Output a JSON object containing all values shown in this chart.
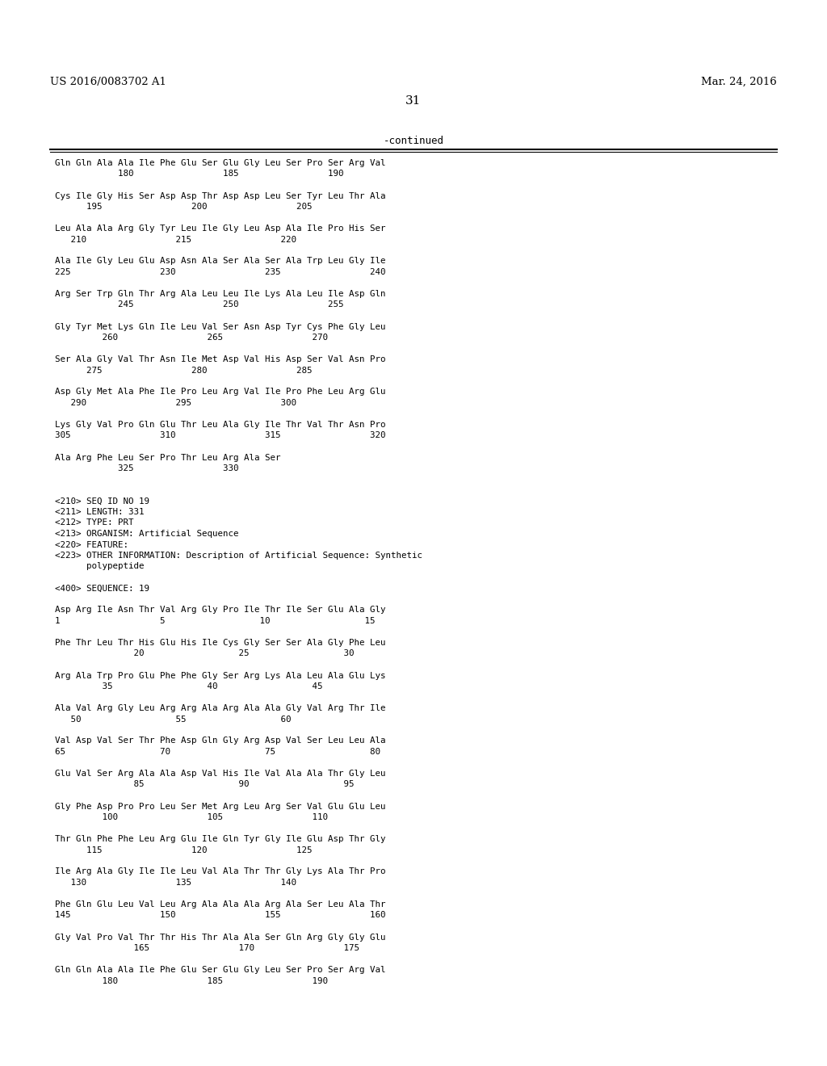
{
  "header_left": "US 2016/0083702 A1",
  "header_right": "Mar. 24, 2016",
  "page_number": "31",
  "continued_label": "-continued",
  "background_color": "#ffffff",
  "text_color": "#000000",
  "font_size": 8.5,
  "mono_font": "DejaVu Sans Mono",
  "serif_font": "DejaVu Serif",
  "lines": [
    "Gln Gln Ala Ala Ile Phe Glu Ser Glu Gly Leu Ser Pro Ser Arg Val",
    "            180                 185                 190",
    "",
    "Cys Ile Gly His Ser Asp Asp Thr Asp Asp Leu Ser Tyr Leu Thr Ala",
    "      195                 200                 205",
    "",
    "Leu Ala Ala Arg Gly Tyr Leu Ile Gly Leu Asp Ala Ile Pro His Ser",
    "   210                 215                 220",
    "",
    "Ala Ile Gly Leu Glu Asp Asn Ala Ser Ala Ser Ala Trp Leu Gly Ile",
    "225                 230                 235                 240",
    "",
    "Arg Ser Trp Gln Thr Arg Ala Leu Leu Ile Lys Ala Leu Ile Asp Gln",
    "            245                 250                 255",
    "",
    "Gly Tyr Met Lys Gln Ile Leu Val Ser Asn Asp Tyr Cys Phe Gly Leu",
    "         260                 265                 270",
    "",
    "Ser Ala Gly Val Thr Asn Ile Met Asp Val His Asp Ser Val Asn Pro",
    "      275                 280                 285",
    "",
    "Asp Gly Met Ala Phe Ile Pro Leu Arg Val Ile Pro Phe Leu Arg Glu",
    "   290                 295                 300",
    "",
    "Lys Gly Val Pro Gln Glu Thr Leu Ala Gly Ile Thr Val Thr Asn Pro",
    "305                 310                 315                 320",
    "",
    "Ala Arg Phe Leu Ser Pro Thr Leu Arg Ala Ser",
    "            325                 330",
    "",
    "",
    "<210> SEQ ID NO 19",
    "<211> LENGTH: 331",
    "<212> TYPE: PRT",
    "<213> ORGANISM: Artificial Sequence",
    "<220> FEATURE:",
    "<223> OTHER INFORMATION: Description of Artificial Sequence: Synthetic",
    "      polypeptide",
    "",
    "<400> SEQUENCE: 19",
    "",
    "Asp Arg Ile Asn Thr Val Arg Gly Pro Ile Thr Ile Ser Glu Ala Gly",
    "1                   5                  10                  15",
    "",
    "Phe Thr Leu Thr His Glu His Ile Cys Gly Ser Ser Ala Gly Phe Leu",
    "               20                  25                  30",
    "",
    "Arg Ala Trp Pro Glu Phe Phe Gly Ser Arg Lys Ala Leu Ala Glu Lys",
    "         35                  40                  45",
    "",
    "Ala Val Arg Gly Leu Arg Arg Ala Arg Ala Ala Gly Val Arg Thr Ile",
    "   50                  55                  60",
    "",
    "Val Asp Val Ser Thr Phe Asp Gln Gly Arg Asp Val Ser Leu Leu Ala",
    "65                  70                  75                  80",
    "",
    "Glu Val Ser Arg Ala Ala Asp Val His Ile Val Ala Ala Thr Gly Leu",
    "               85                  90                  95",
    "",
    "Gly Phe Asp Pro Pro Leu Ser Met Arg Leu Arg Ser Val Glu Glu Leu",
    "         100                 105                 110",
    "",
    "Thr Gln Phe Phe Leu Arg Glu Ile Gln Tyr Gly Ile Glu Asp Thr Gly",
    "      115                 120                 125",
    "",
    "Ile Arg Ala Gly Ile Ile Leu Val Ala Thr Thr Gly Lys Ala Thr Pro",
    "   130                 135                 140",
    "",
    "Phe Gln Glu Leu Val Leu Arg Ala Ala Ala Arg Ala Ser Leu Ala Thr",
    "145                 150                 155                 160",
    "",
    "Gly Val Pro Val Thr Thr His Thr Ala Ala Ser Gln Arg Gly Gly Glu",
    "               165                 170                 175",
    "",
    "Gln Gln Ala Ala Ile Phe Glu Ser Glu Gly Leu Ser Pro Ser Arg Val",
    "         180                 185                 190"
  ]
}
